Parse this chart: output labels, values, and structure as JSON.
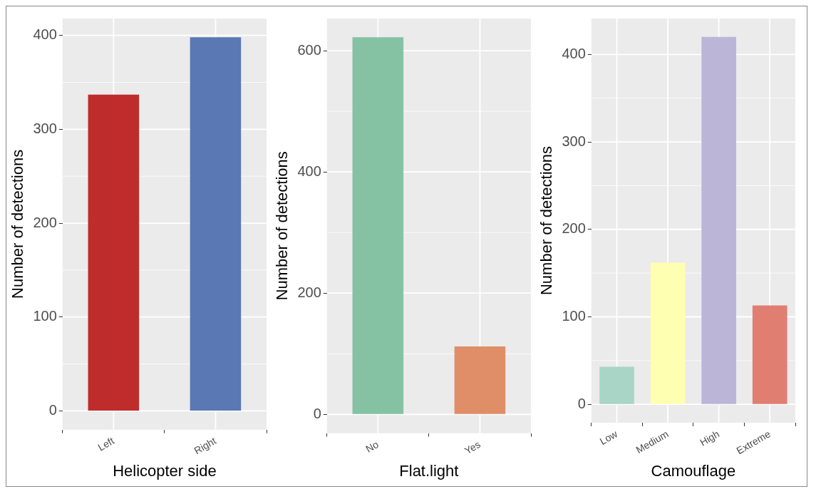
{
  "chart_data": [
    {
      "type": "bar",
      "xlabel": "Helicopter side",
      "ylabel": "Number of detections",
      "categories": [
        "Left",
        "Right"
      ],
      "colors": [
        "#bf2c2c",
        "#5a78b4"
      ],
      "values": [
        337,
        398
      ],
      "ylim": [
        -20,
        418
      ],
      "yticks": [
        0,
        100,
        200,
        300,
        400
      ],
      "grid": true,
      "legend": false
    },
    {
      "type": "bar",
      "xlabel": "Flat.light",
      "ylabel": "Number of detections",
      "categories": [
        "No",
        "Yes"
      ],
      "colors": [
        "#85c2a4",
        "#e08e68"
      ],
      "values": [
        622,
        112
      ],
      "ylim": [
        -31,
        653
      ],
      "yticks": [
        0,
        200,
        400,
        600
      ],
      "grid": true,
      "legend": false
    },
    {
      "type": "bar",
      "xlabel": "Camouflage",
      "ylabel": "Number of detections",
      "categories": [
        "Low",
        "Medium",
        "High",
        "Extreme"
      ],
      "colors": [
        "#a8d5c6",
        "#ffffb2",
        "#bbb5d8",
        "#e07e72"
      ],
      "values": [
        43,
        162,
        420,
        113
      ],
      "ylim": [
        -21,
        441
      ],
      "yticks": [
        0,
        100,
        200,
        300,
        400
      ],
      "grid": true,
      "legend": false
    }
  ]
}
